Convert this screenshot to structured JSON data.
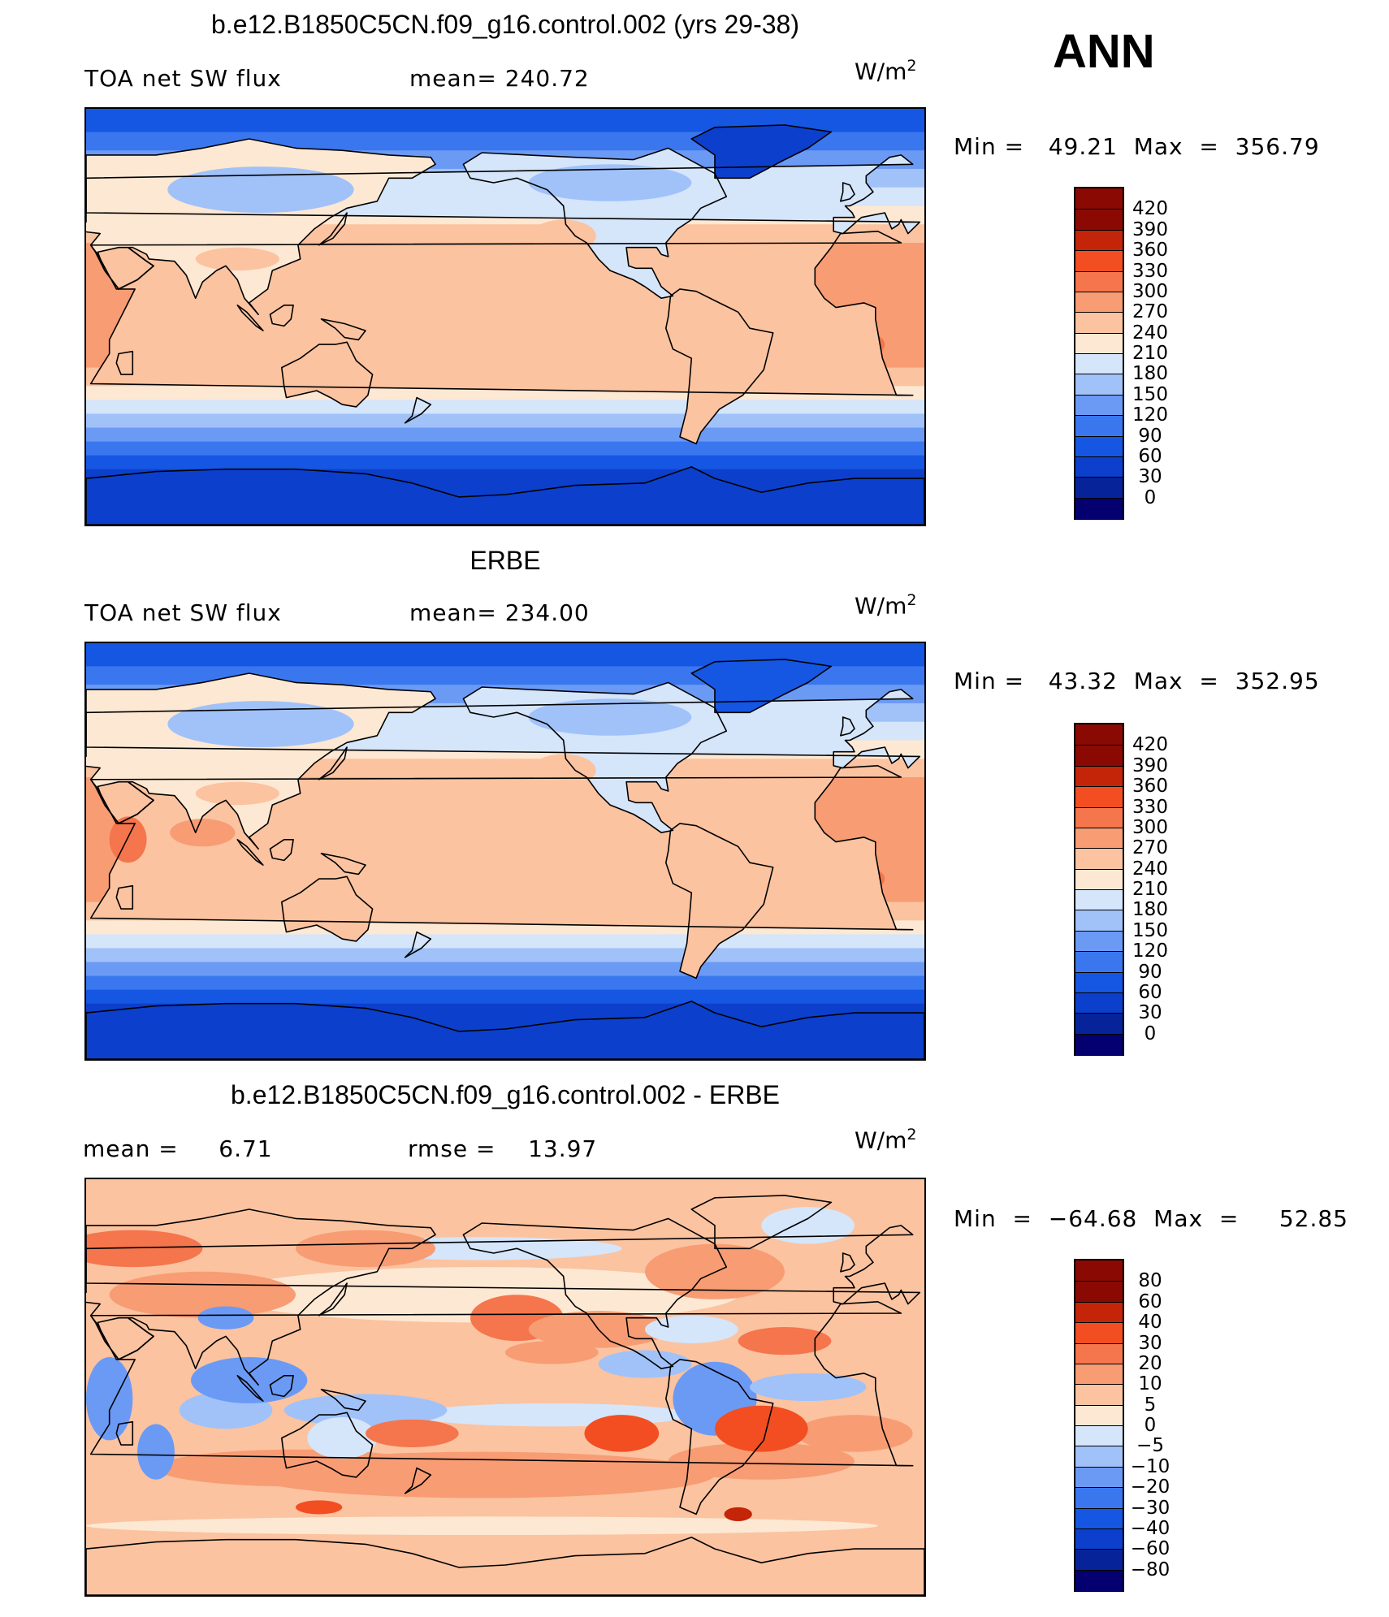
{
  "header": {
    "season": "ANN"
  },
  "units": {
    "base": "W/m",
    "exp": "2"
  },
  "colors": {
    "abs_scale": [
      "#04006f",
      "#06239a",
      "#0c3fcb",
      "#1556e2",
      "#3a77ef",
      "#6b9af5",
      "#a0c2f9",
      "#d5e5fa",
      "#fde8d3",
      "#fbc3a0",
      "#f89c74",
      "#f5754c",
      "#f24e22",
      "#c42408",
      "#8a0a03"
    ],
    "diff_scale": [
      "#04006f",
      "#06239a",
      "#0c3fcb",
      "#1556e2",
      "#3a77ef",
      "#6b9af5",
      "#a0c2f9",
      "#d5e5fa",
      "#fde8d3",
      "#fbc3a0",
      "#f89c74",
      "#f5754c",
      "#f24e22",
      "#c42408",
      "#8a0a03"
    ]
  },
  "panels": [
    {
      "title": "b.e12.B1850C5CN.f09_g16.control.002 (yrs 29-38)",
      "left_label": "TOA net SW flux",
      "mid_label": "mean= 240.72",
      "minmax": "Min =   49.21  Max  =  356.79",
      "kind": "model",
      "scale": "abs"
    },
    {
      "title": "ERBE",
      "left_label": "TOA net SW flux",
      "mid_label": "mean= 234.00",
      "minmax": "Min =   43.32  Max  =  352.95",
      "kind": "obs",
      "scale": "abs"
    },
    {
      "title": "b.e12.B1850C5CN.f09_g16.control.002 - ERBE",
      "left_label": "mean =     6.71",
      "mid_label": "rmse =    13.97",
      "minmax": "Min  =  −64.68  Max  =     52.85",
      "kind": "diff",
      "scale": "diff"
    }
  ],
  "colorbars": {
    "abs_ticks": [
      "420",
      "390",
      "360",
      "330",
      "300",
      "270",
      "240",
      "210",
      "180",
      "150",
      "120",
      "90",
      "60",
      "30",
      "0"
    ],
    "diff_ticks": [
      "80",
      "60",
      "40",
      "30",
      "20",
      "10",
      "5",
      "0",
      "−5",
      "−10",
      "−20",
      "−30",
      "−40",
      "−60",
      "−80"
    ]
  }
}
